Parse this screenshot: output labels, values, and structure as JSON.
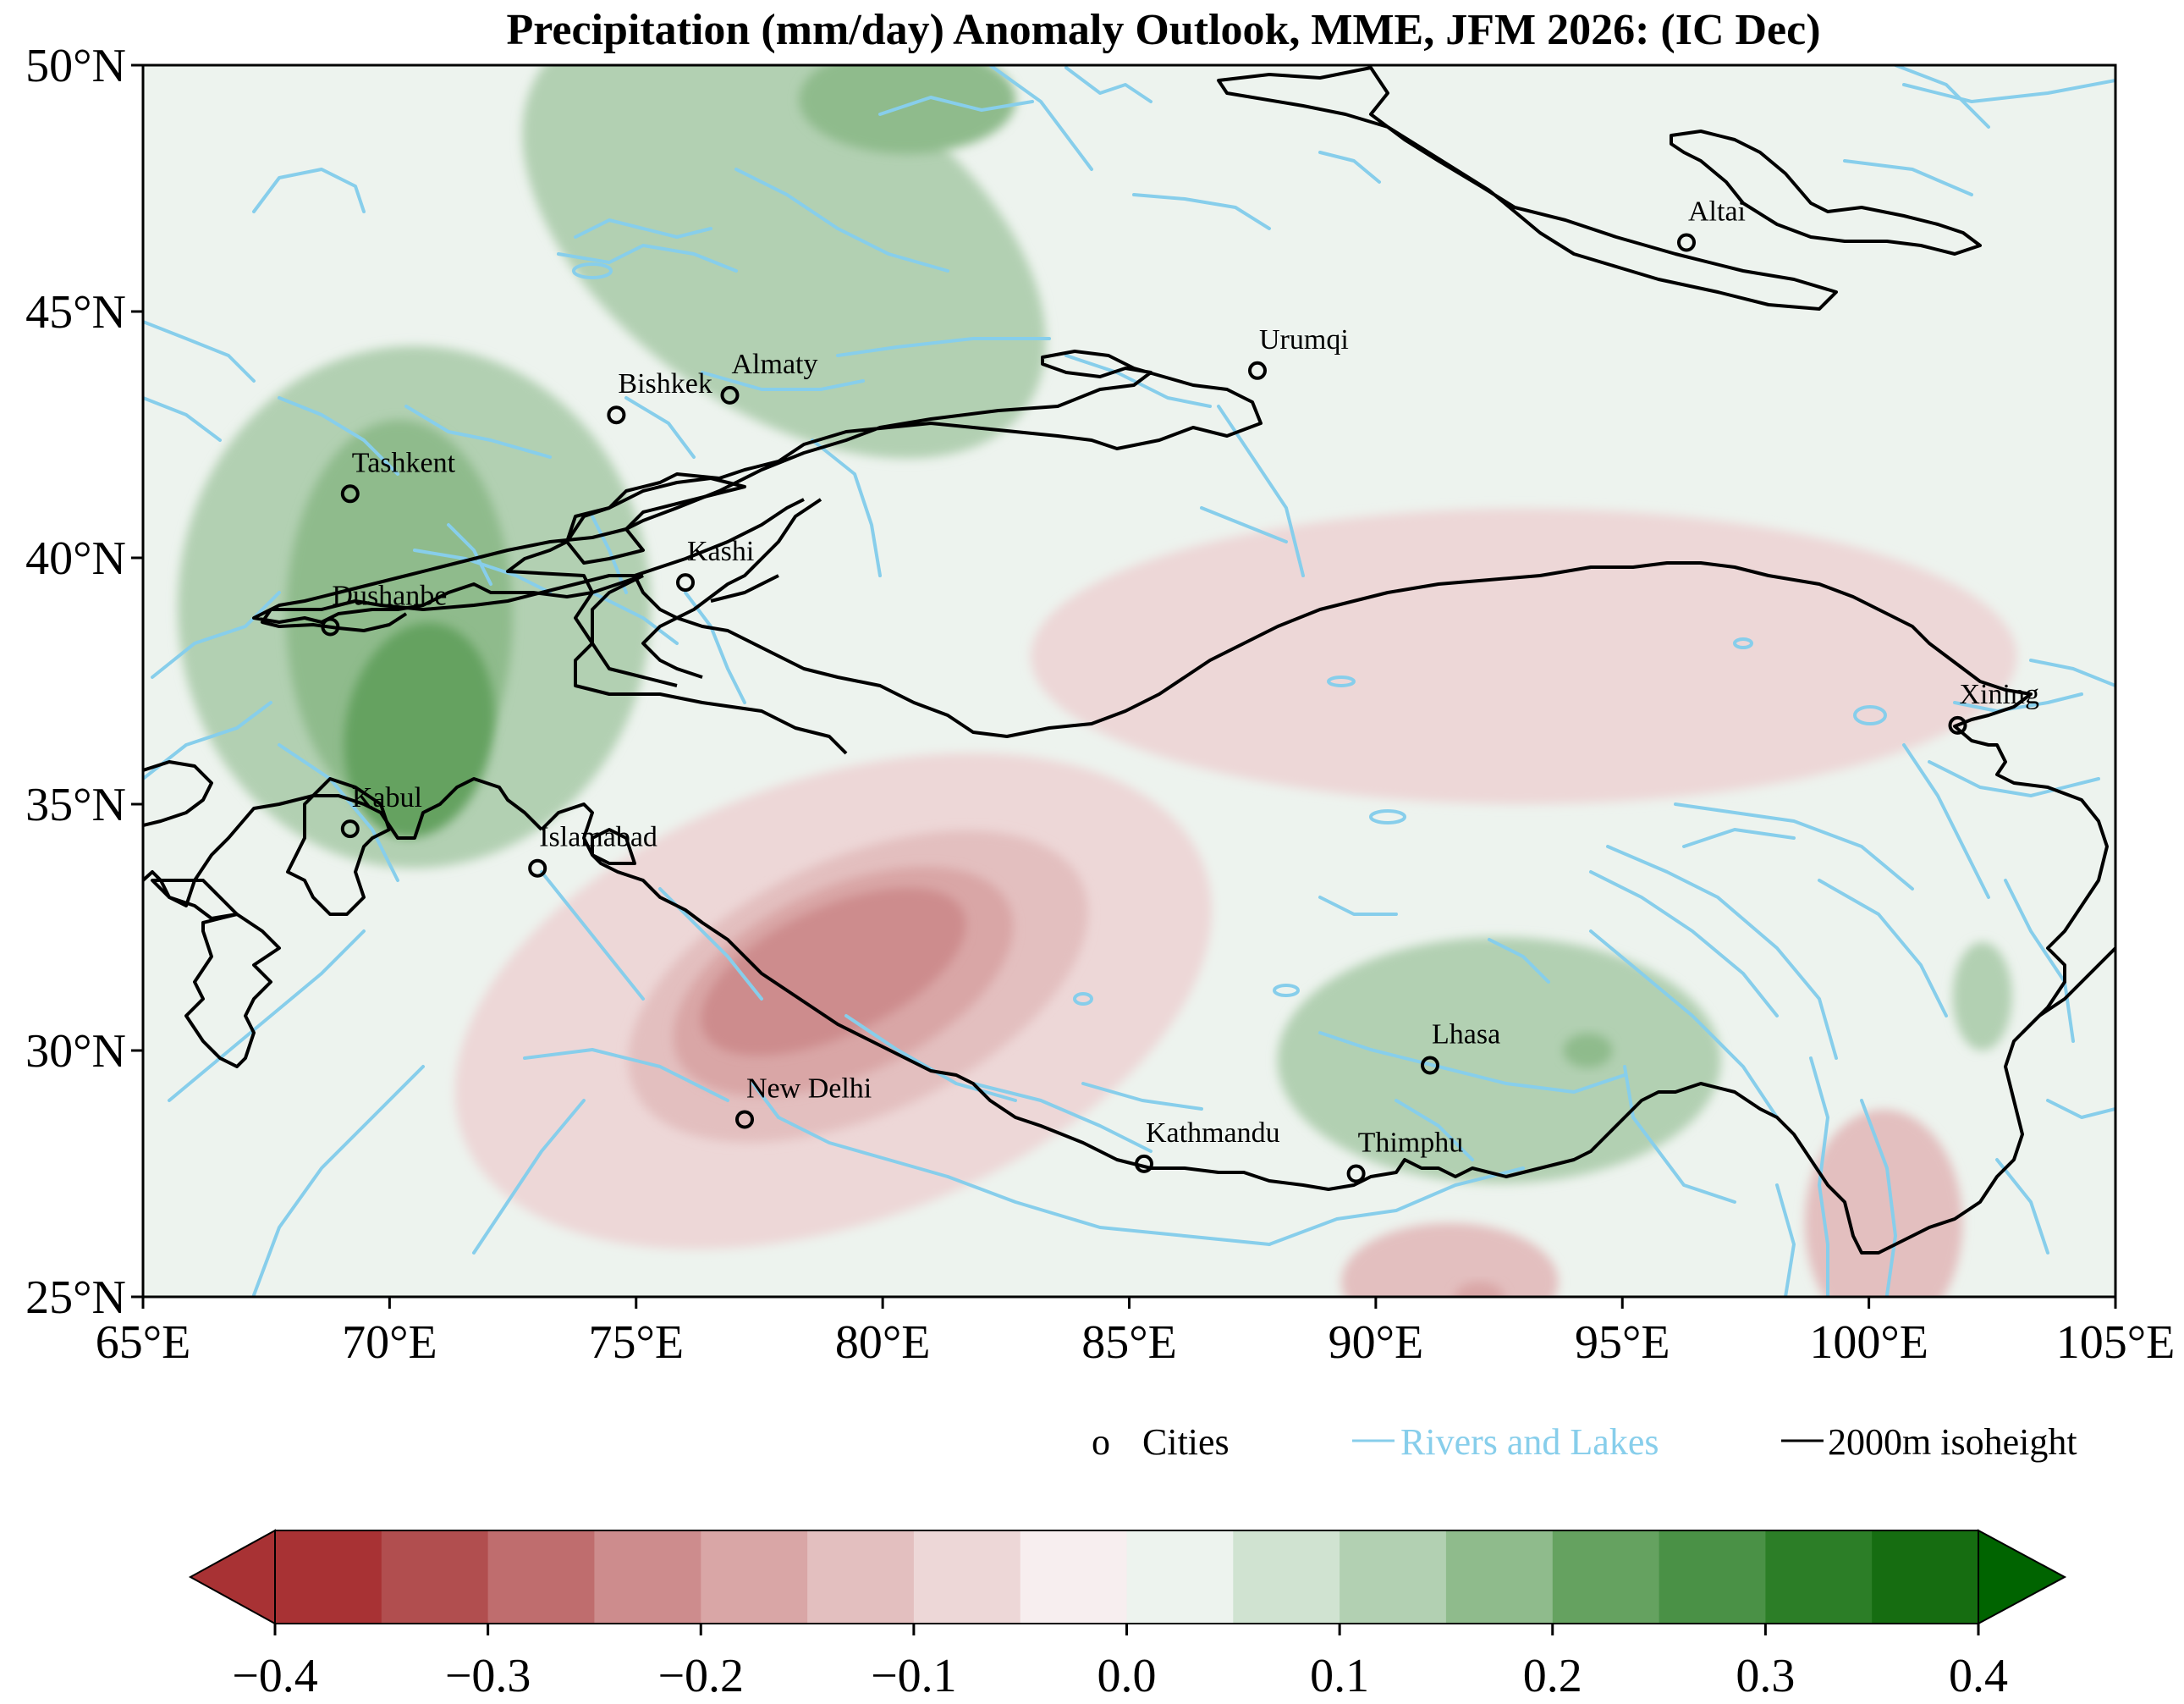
{
  "title": "Precipitation (mm/day) Anomaly Outlook, MME, JFM  2026:  (IC Dec)",
  "map": {
    "extent": {
      "lon": [
        65,
        105
      ],
      "lat": [
        25,
        50
      ]
    },
    "lon_ticks": [
      {
        "value": 65,
        "label": "65°E"
      },
      {
        "value": 70,
        "label": "70°E"
      },
      {
        "value": 75,
        "label": "75°E"
      },
      {
        "value": 80,
        "label": "80°E"
      },
      {
        "value": 85,
        "label": "85°E"
      },
      {
        "value": 90,
        "label": "90°E"
      },
      {
        "value": 95,
        "label": "95°E"
      },
      {
        "value": 100,
        "label": "100°E"
      },
      {
        "value": 105,
        "label": "105°E"
      }
    ],
    "lat_ticks": [
      {
        "value": 25,
        "label": "25°N"
      },
      {
        "value": 30,
        "label": "30°N"
      },
      {
        "value": 35,
        "label": "35°N"
      },
      {
        "value": 40,
        "label": "40°N"
      },
      {
        "value": 45,
        "label": "45°N"
      },
      {
        "value": 50,
        "label": "50°N"
      }
    ],
    "background_color": "#edf3ee",
    "cities": [
      {
        "name": "Altai",
        "lon": 96.3,
        "lat": 46.4
      },
      {
        "name": "Urumqi",
        "lon": 87.6,
        "lat": 43.8
      },
      {
        "name": "Almaty",
        "lon": 76.9,
        "lat": 43.3
      },
      {
        "name": "Bishkek",
        "lon": 74.6,
        "lat": 42.9
      },
      {
        "name": "Tashkent",
        "lon": 69.2,
        "lat": 41.3
      },
      {
        "name": "Kashi",
        "lon": 76.0,
        "lat": 39.5
      },
      {
        "name": "Dushanbe",
        "lon": 68.8,
        "lat": 38.6
      },
      {
        "name": "Xining",
        "lon": 101.8,
        "lat": 36.6
      },
      {
        "name": "Kabul",
        "lon": 69.2,
        "lat": 34.5
      },
      {
        "name": "Islamabad",
        "lon": 73.0,
        "lat": 33.7
      },
      {
        "name": "Lhasa",
        "lon": 91.1,
        "lat": 29.7
      },
      {
        "name": "New Delhi",
        "lon": 77.2,
        "lat": 28.6
      },
      {
        "name": "Kathmandu",
        "lon": 85.3,
        "lat": 27.7
      },
      {
        "name": "Thimphu",
        "lon": 89.6,
        "lat": 27.5
      }
    ],
    "anomaly_regions": [
      {
        "level": 0.1,
        "lon": 78,
        "lat": 46.5,
        "rlon": 6,
        "rlat": 3.5,
        "rot": 35
      },
      {
        "level": 0.1,
        "lon": 70.5,
        "lat": 39,
        "rlon": 4.8,
        "rlat": 5.3,
        "rot": 0
      },
      {
        "level": 0.15,
        "lon": 80.5,
        "lat": 49.3,
        "rlon": 2.2,
        "rlat": 1.1,
        "rot": 0
      },
      {
        "level": 0.15,
        "lon": 70.2,
        "lat": 38.8,
        "rlon": 2.3,
        "rlat": 4,
        "rot": 0
      },
      {
        "level": 0.2,
        "lon": 70.6,
        "lat": 36.5,
        "rlon": 1.5,
        "rlat": 2.2,
        "rot": 10
      },
      {
        "level": 0.1,
        "lon": 92.5,
        "lat": 29.8,
        "rlon": 4.5,
        "rlat": 2.5,
        "rot": 0
      },
      {
        "level": 0.15,
        "lon": 94.3,
        "lat": 30.0,
        "rlon": 0.5,
        "rlat": 0.35,
        "rot": 0
      },
      {
        "level": 0.1,
        "lon": 102.3,
        "lat": 31.1,
        "rlon": 0.6,
        "rlat": 1.1,
        "rot": 0
      },
      {
        "level": -0.05,
        "lon": 79,
        "lat": 31,
        "rlon": 8,
        "rlat": 4.5,
        "rot": -20
      },
      {
        "level": -0.05,
        "lon": 93,
        "lat": 38,
        "rlon": 10,
        "rlat": 3,
        "rot": 0
      },
      {
        "level": -0.1,
        "lon": 79.5,
        "lat": 31.3,
        "rlon": 5,
        "rlat": 2.6,
        "rot": -25
      },
      {
        "level": -0.15,
        "lon": 79.2,
        "lat": 31.4,
        "rlon": 3.7,
        "rlat": 1.9,
        "rot": -25
      },
      {
        "level": -0.2,
        "lon": 79,
        "lat": 31.6,
        "rlon": 2.9,
        "rlat": 1.3,
        "rot": -25
      },
      {
        "level": -0.1,
        "lon": 91.5,
        "lat": 25.3,
        "rlon": 2.2,
        "rlat": 1.2,
        "rot": 0
      },
      {
        "level": -0.15,
        "lon": 92.1,
        "lat": 25.0,
        "rlon": 0.5,
        "rlat": 0.3,
        "rot": 0
      },
      {
        "level": -0.1,
        "lon": 100.3,
        "lat": 26.5,
        "rlon": 1.6,
        "rlat": 2.3,
        "rot": 0
      }
    ]
  },
  "legend": {
    "cities_marker": "o",
    "cities_label": "Cities",
    "rivers_label": "Rivers and Lakes",
    "rivers_color": "#87ceeb",
    "isoheight_label": "2000m isoheight",
    "isoheight_color": "#000000"
  },
  "colorbar": {
    "bins": [
      -0.4,
      -0.35,
      -0.3,
      -0.25,
      -0.2,
      -0.15,
      -0.1,
      -0.05,
      0.0,
      0.05,
      0.1,
      0.15,
      0.2,
      0.25,
      0.3,
      0.35,
      0.4
    ],
    "colors": [
      "#a83234",
      "#b14e4f",
      "#bf6d6e",
      "#cd8c8d",
      "#d9a6a6",
      "#e3bfbf",
      "#edd7d7",
      "#f7eeef",
      "#edf3ee",
      "#d0e3d1",
      "#b2d0b2",
      "#8fbb8c",
      "#65a260",
      "#4a9146",
      "#2c7e27",
      "#166d11"
    ],
    "under_color": "#a83234",
    "over_color": "#006400",
    "tick_labels": [
      {
        "value": -0.4,
        "label": "−0.4"
      },
      {
        "value": -0.3,
        "label": "−0.3"
      },
      {
        "value": -0.2,
        "label": "−0.2"
      },
      {
        "value": -0.1,
        "label": "−0.1"
      },
      {
        "value": 0.0,
        "label": "0.0"
      },
      {
        "value": 0.1,
        "label": "0.1"
      },
      {
        "value": 0.2,
        "label": "0.2"
      },
      {
        "value": 0.3,
        "label": "0.3"
      },
      {
        "value": 0.4,
        "label": "0.4"
      }
    ]
  }
}
